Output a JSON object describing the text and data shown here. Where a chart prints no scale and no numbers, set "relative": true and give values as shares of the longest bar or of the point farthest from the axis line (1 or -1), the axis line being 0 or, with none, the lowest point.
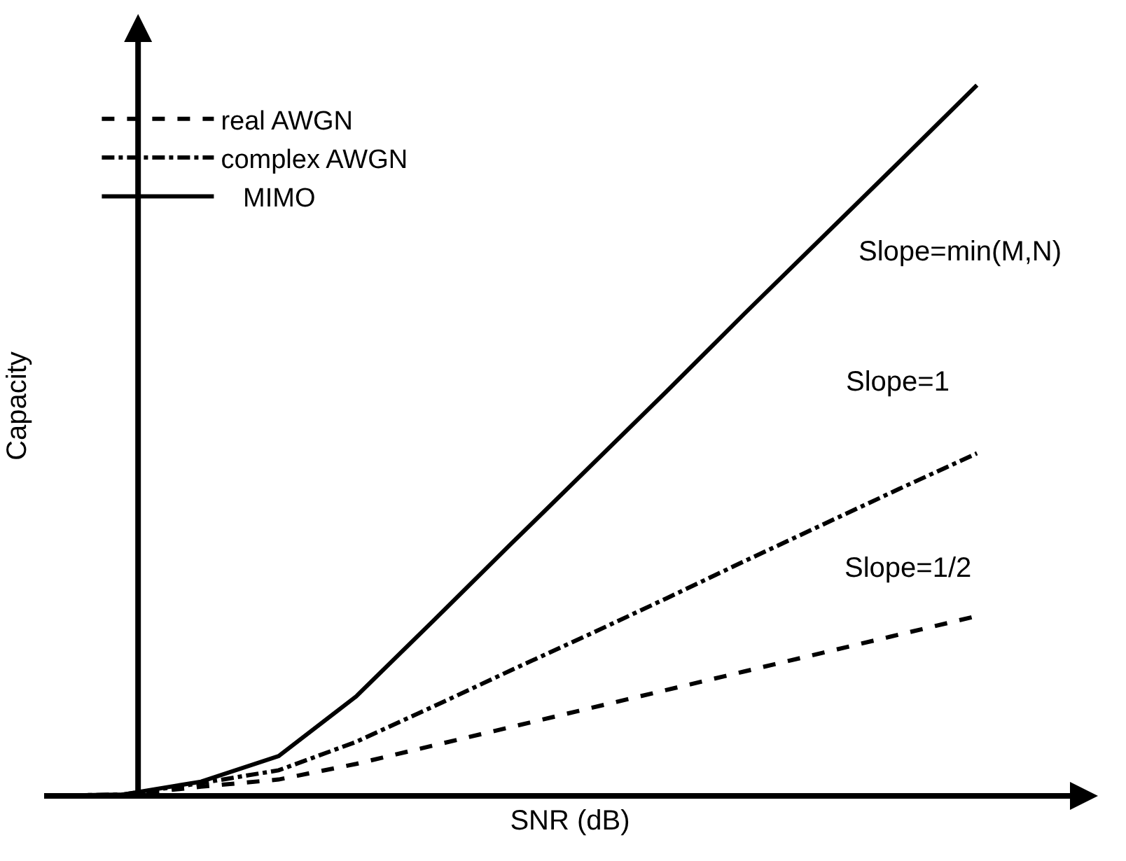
{
  "chart_data": {
    "type": "line",
    "relative": true,
    "xlabel": "SNR (dB)",
    "ylabel": "Capacity",
    "legend": "top left",
    "categories": [
      null,
      null,
      null,
      null,
      null,
      null,
      null,
      null,
      null,
      null,
      null,
      null,
      null
    ],
    "series": [
      {
        "name": "real AWGN",
        "color": "#000000",
        "line_style": "dashed",
        "values": [
          0,
          0.001,
          0.013,
          0.023,
          0.045,
          0.071,
          0.097,
          0.123,
          0.149,
          0.175,
          0.201,
          0.227,
          0.253
        ]
      },
      {
        "name": "complex AWGN",
        "color": "#000000",
        "line_style": "dashdot",
        "values": [
          0,
          0.002,
          0.018,
          0.036,
          0.076,
          0.126,
          0.177,
          0.227,
          0.278,
          0.33,
          0.381,
          0.432,
          0.482
        ]
      },
      {
        "name": "   MIMO",
        "color": "#000000",
        "line_style": "solid",
        "values": [
          0,
          0.002,
          0.02,
          0.056,
          0.14,
          0.247,
          0.355,
          0.462,
          0.569,
          0.678,
          0.785,
          0.892,
          1
        ]
      }
    ],
    "annotations": [
      "Slope=min(M,N)",
      "Slope=1",
      "Slope=1/2"
    ]
  }
}
